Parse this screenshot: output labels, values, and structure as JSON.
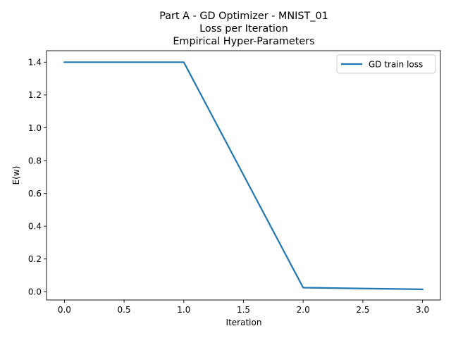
{
  "chart_data": {
    "type": "line",
    "title_lines": [
      "Part A - GD Optimizer - MNIST_01",
      "Loss per Iteration",
      "Empirical Hyper-Parameters"
    ],
    "xlabel": "Iteration",
    "ylabel": "E(w)",
    "xlim": [
      -0.15,
      3.15
    ],
    "ylim": [
      -0.05,
      1.47
    ],
    "xticks": [
      0.0,
      0.5,
      1.0,
      1.5,
      2.0,
      2.5,
      3.0
    ],
    "xtick_labels": [
      "0.0",
      "0.5",
      "1.0",
      "1.5",
      "2.0",
      "2.5",
      "3.0"
    ],
    "yticks": [
      0.0,
      0.2,
      0.4,
      0.6,
      0.8,
      1.0,
      1.2,
      1.4
    ],
    "ytick_labels": [
      "0.0",
      "0.2",
      "0.4",
      "0.6",
      "0.8",
      "1.0",
      "1.2",
      "1.4"
    ],
    "grid": false,
    "legend_position": "top-right",
    "series": [
      {
        "name": "GD train loss",
        "color": "#1f77b4",
        "x": [
          0,
          1,
          2,
          3
        ],
        "y": [
          1.4,
          1.4,
          0.025,
          0.015
        ]
      }
    ]
  }
}
